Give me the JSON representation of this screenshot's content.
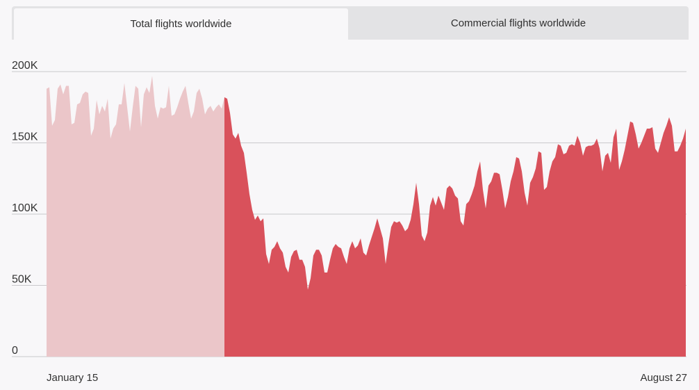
{
  "tabs": [
    {
      "label": "Total flights worldwide",
      "active": true
    },
    {
      "label": "Commercial flights worldwide",
      "active": false
    }
  ],
  "colors": {
    "background": "#f8f7f9",
    "highlight": "#d9515b",
    "faded": "#ebc6c9",
    "grid": "#c9c9cc",
    "tab_inactive": "#e3e3e5"
  },
  "chart_data": {
    "type": "area",
    "title": "",
    "xlabel": "",
    "ylabel": "",
    "ylim": [
      0,
      200000
    ],
    "yticks": [
      {
        "value": 0,
        "label": "0"
      },
      {
        "value": 50000,
        "label": "50K"
      },
      {
        "value": 100000,
        "label": "100K"
      },
      {
        "value": 150000,
        "label": "150K"
      },
      {
        "value": 200000,
        "label": "200K"
      }
    ],
    "x_start_label": "January 15",
    "x_end_label": "August 27",
    "highlight_start_index": 64,
    "grid": true,
    "series": [
      {
        "values": [
          188000,
          189000,
          162000,
          166000,
          188000,
          191000,
          184000,
          190000,
          190000,
          163000,
          164000,
          177000,
          178000,
          184000,
          186000,
          185000,
          155000,
          160000,
          180000,
          170000,
          176000,
          172000,
          181000,
          153000,
          160000,
          163000,
          177000,
          177000,
          192000,
          175000,
          158000,
          175000,
          190000,
          188000,
          161000,
          184000,
          189000,
          185000,
          197000,
          176000,
          167000,
          175000,
          174000,
          175000,
          190000,
          169000,
          170000,
          175000,
          181000,
          186000,
          190000,
          178000,
          167000,
          172000,
          185000,
          188000,
          181000,
          170000,
          174000,
          176000,
          172000,
          175000,
          177000,
          174000,
          182000,
          181000,
          171000,
          156000,
          153000,
          157000,
          148000,
          143000,
          129000,
          114000,
          103000,
          96000,
          99000,
          95000,
          97000,
          72000,
          65000,
          75000,
          77000,
          81000,
          76000,
          73000,
          63000,
          59000,
          70000,
          74000,
          75000,
          68000,
          68000,
          63000,
          47000,
          55000,
          71000,
          75000,
          75000,
          71000,
          59000,
          59000,
          68000,
          76000,
          79000,
          77000,
          76000,
          70000,
          65000,
          76000,
          81000,
          76000,
          78000,
          83000,
          73000,
          71000,
          78000,
          84000,
          90000,
          97000,
          90000,
          83000,
          65000,
          79000,
          91000,
          95000,
          94000,
          95000,
          92000,
          88000,
          90000,
          96000,
          107000,
          122000,
          107000,
          85000,
          81000,
          87000,
          106000,
          112000,
          106000,
          113000,
          108000,
          103000,
          118000,
          120000,
          118000,
          113000,
          111000,
          95000,
          92000,
          107000,
          109000,
          114000,
          120000,
          130000,
          137000,
          117000,
          104000,
          120000,
          123000,
          129000,
          129000,
          128000,
          117000,
          104000,
          112000,
          123000,
          130000,
          140000,
          139000,
          130000,
          115000,
          106000,
          122000,
          126000,
          132000,
          144000,
          143000,
          117000,
          119000,
          130000,
          137000,
          140000,
          149000,
          148000,
          142000,
          143000,
          148000,
          149000,
          148000,
          155000,
          150000,
          141000,
          147000,
          148000,
          148000,
          149000,
          153000,
          146000,
          130000,
          141000,
          143000,
          136000,
          154000,
          160000,
          131000,
          137000,
          145000,
          155000,
          165000,
          164000,
          156000,
          146000,
          150000,
          155000,
          160000,
          160000,
          161000,
          146000,
          143000,
          150000,
          157000,
          162000,
          168000,
          162000,
          144000,
          144000,
          148000,
          153000,
          160000
        ]
      }
    ]
  }
}
